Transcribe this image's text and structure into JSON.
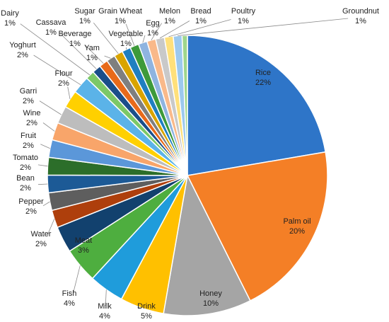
{
  "chart_data": {
    "type": "pie",
    "title": "",
    "start_angle_deg": 0,
    "direction": "clockwise",
    "slices": [
      {
        "label": "Rice",
        "value": 22,
        "display": "22%",
        "color": "#2E75C8",
        "label_pos": "inside"
      },
      {
        "label": "Palm oil",
        "value": 20,
        "display": "20%",
        "color": "#F47F26",
        "label_pos": "inside"
      },
      {
        "label": "Honey",
        "value": 10,
        "display": "10%",
        "color": "#A5A5A5",
        "label_pos": "inside"
      },
      {
        "label": "Drink",
        "value": 5,
        "display": "5%",
        "color": "#FFC000",
        "label_pos": "outside"
      },
      {
        "label": "Milk",
        "value": 4,
        "display": "4%",
        "color": "#1F9CDB",
        "label_pos": "outside"
      },
      {
        "label": "Fish",
        "value": 4,
        "display": "4%",
        "color": "#4EAE3F",
        "label_pos": "outside"
      },
      {
        "label": "Meat",
        "value": 3,
        "display": "3%",
        "color": "#12416E",
        "label_pos": "outside"
      },
      {
        "label": "Water",
        "value": 2,
        "display": "2%",
        "color": "#AE3F0C",
        "label_pos": "outside"
      },
      {
        "label": "Pepper",
        "value": 2,
        "display": "2%",
        "color": "#5E5E5E",
        "label_pos": "outside"
      },
      {
        "label": "Bean",
        "value": 2,
        "display": "2%",
        "color": "#1C5A96",
        "label_pos": "outside"
      },
      {
        "label": "Tomato",
        "value": 2,
        "display": "2%",
        "color": "#2C6E2A",
        "label_pos": "outside"
      },
      {
        "label": "Fruit",
        "value": 2,
        "display": "2%",
        "color": "#5B97D9",
        "label_pos": "outside"
      },
      {
        "label": "Wine",
        "value": 2,
        "display": "2%",
        "color": "#F8A56A",
        "label_pos": "outside"
      },
      {
        "label": "Garri",
        "value": 2,
        "display": "2%",
        "color": "#BDBDBD",
        "label_pos": "outside"
      },
      {
        "label": "Flour",
        "value": 2,
        "display": "2%",
        "color": "#FFD000",
        "label_pos": "outside"
      },
      {
        "label": "Yoghurt",
        "value": 2,
        "display": "2%",
        "color": "#5BB3E8",
        "label_pos": "outside"
      },
      {
        "label": "Dairy",
        "value": 1,
        "display": "1%",
        "color": "#7CC867",
        "label_pos": "outside"
      },
      {
        "label": "Cassava",
        "value": 1,
        "display": "1%",
        "color": "#1A4E8A",
        "label_pos": "outside"
      },
      {
        "label": "Beverage",
        "value": 1,
        "display": "1%",
        "color": "#E86A1A",
        "label_pos": "outside"
      },
      {
        "label": "Yam",
        "value": 1,
        "display": "1%",
        "color": "#7F7F7F",
        "label_pos": "outside"
      },
      {
        "label": "Sugar",
        "value": 1,
        "display": "1%",
        "color": "#D9A400",
        "label_pos": "outside"
      },
      {
        "label": "Vegetable",
        "value": 1,
        "display": "1%",
        "color": "#1F7FC0",
        "label_pos": "outside"
      },
      {
        "label": "Grain Wheat",
        "value": 1,
        "display": "1%",
        "color": "#3D9A3A",
        "label_pos": "outside"
      },
      {
        "label": "Egg",
        "value": 1,
        "display": "1%",
        "color": "#8FB4E0",
        "label_pos": "outside"
      },
      {
        "label": "Melon",
        "value": 1,
        "display": "1%",
        "color": "#F9B98A",
        "label_pos": "outside"
      },
      {
        "label": "Bread",
        "value": 1,
        "display": "1%",
        "color": "#C9C9C9",
        "label_pos": "outside"
      },
      {
        "label": "Poultry",
        "value": 1,
        "display": "1%",
        "color": "#FFE07A",
        "label_pos": "outside"
      },
      {
        "label": "Groundnut",
        "value": 1,
        "display": "1%",
        "color": "#9CC9EE",
        "label_pos": "outside"
      },
      {
        "label": "",
        "value": 0.6,
        "display": "",
        "color": "#9FD68C",
        "label_pos": "none"
      }
    ]
  }
}
